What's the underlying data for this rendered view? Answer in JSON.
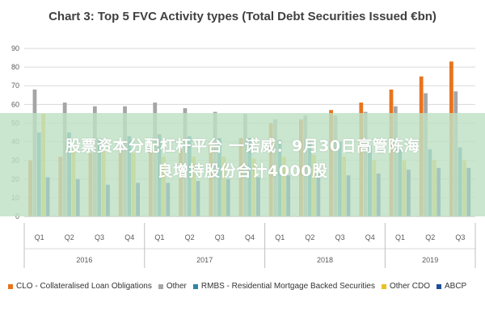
{
  "chart_data": {
    "type": "bar",
    "title": "Chart 3: Top 5 FVC Activity types (Total Debt Securities Issued €bn)",
    "ylim": [
      0,
      90
    ],
    "y_ticks": [
      "0",
      "10",
      "20",
      "30",
      "40",
      "50",
      "60",
      "70",
      "80",
      "90"
    ],
    "grid": true,
    "legend_position": "bottom",
    "categories": [
      "Q1",
      "Q2",
      "Q3",
      "Q4",
      "Q1",
      "Q2",
      "Q3",
      "Q4",
      "Q1",
      "Q2",
      "Q3",
      "Q4",
      "Q1",
      "Q2",
      "Q3"
    ],
    "year_groups": [
      {
        "label": "2016",
        "count": 4
      },
      {
        "label": "2017",
        "count": 4
      },
      {
        "label": "2018",
        "count": 4
      },
      {
        "label": "2019",
        "count": 3
      }
    ],
    "series": [
      {
        "name": "CLO - Collateralised Loan Obligations",
        "color": "#e8731e",
        "values": [
          30,
          32,
          34,
          36,
          36,
          36,
          40,
          42,
          50,
          52,
          57,
          61,
          68,
          75,
          83
        ]
      },
      {
        "name": "Other",
        "color": "#a5a5a5",
        "values": [
          68,
          61,
          59,
          59,
          61,
          58,
          56,
          55,
          52,
          54,
          54,
          56,
          59,
          66,
          67
        ]
      },
      {
        "name": "RMBS - Residential Mortgage Backed Securities",
        "color": "#2e86a6",
        "values": [
          45,
          45,
          42,
          43,
          44,
          43,
          42,
          42,
          41,
          40,
          40,
          38,
          36,
          36,
          37
        ]
      },
      {
        "name": "Other CDO",
        "color": "#e8c21e",
        "values": [
          55,
          36,
          35,
          34,
          32,
          32,
          32,
          31,
          32,
          33,
          32,
          30,
          30,
          30,
          30
        ]
      },
      {
        "name": "ABCP",
        "color": "#1f4e9a",
        "values": [
          21,
          20,
          17,
          18,
          18,
          19,
          20,
          21,
          22,
          23,
          22,
          23,
          25,
          26,
          26
        ]
      }
    ]
  },
  "overlay": {
    "line1": "股票资本分配杠杆平台 一诺威：9月30日高管陈海",
    "line2": "良增持股份合计4000股"
  }
}
